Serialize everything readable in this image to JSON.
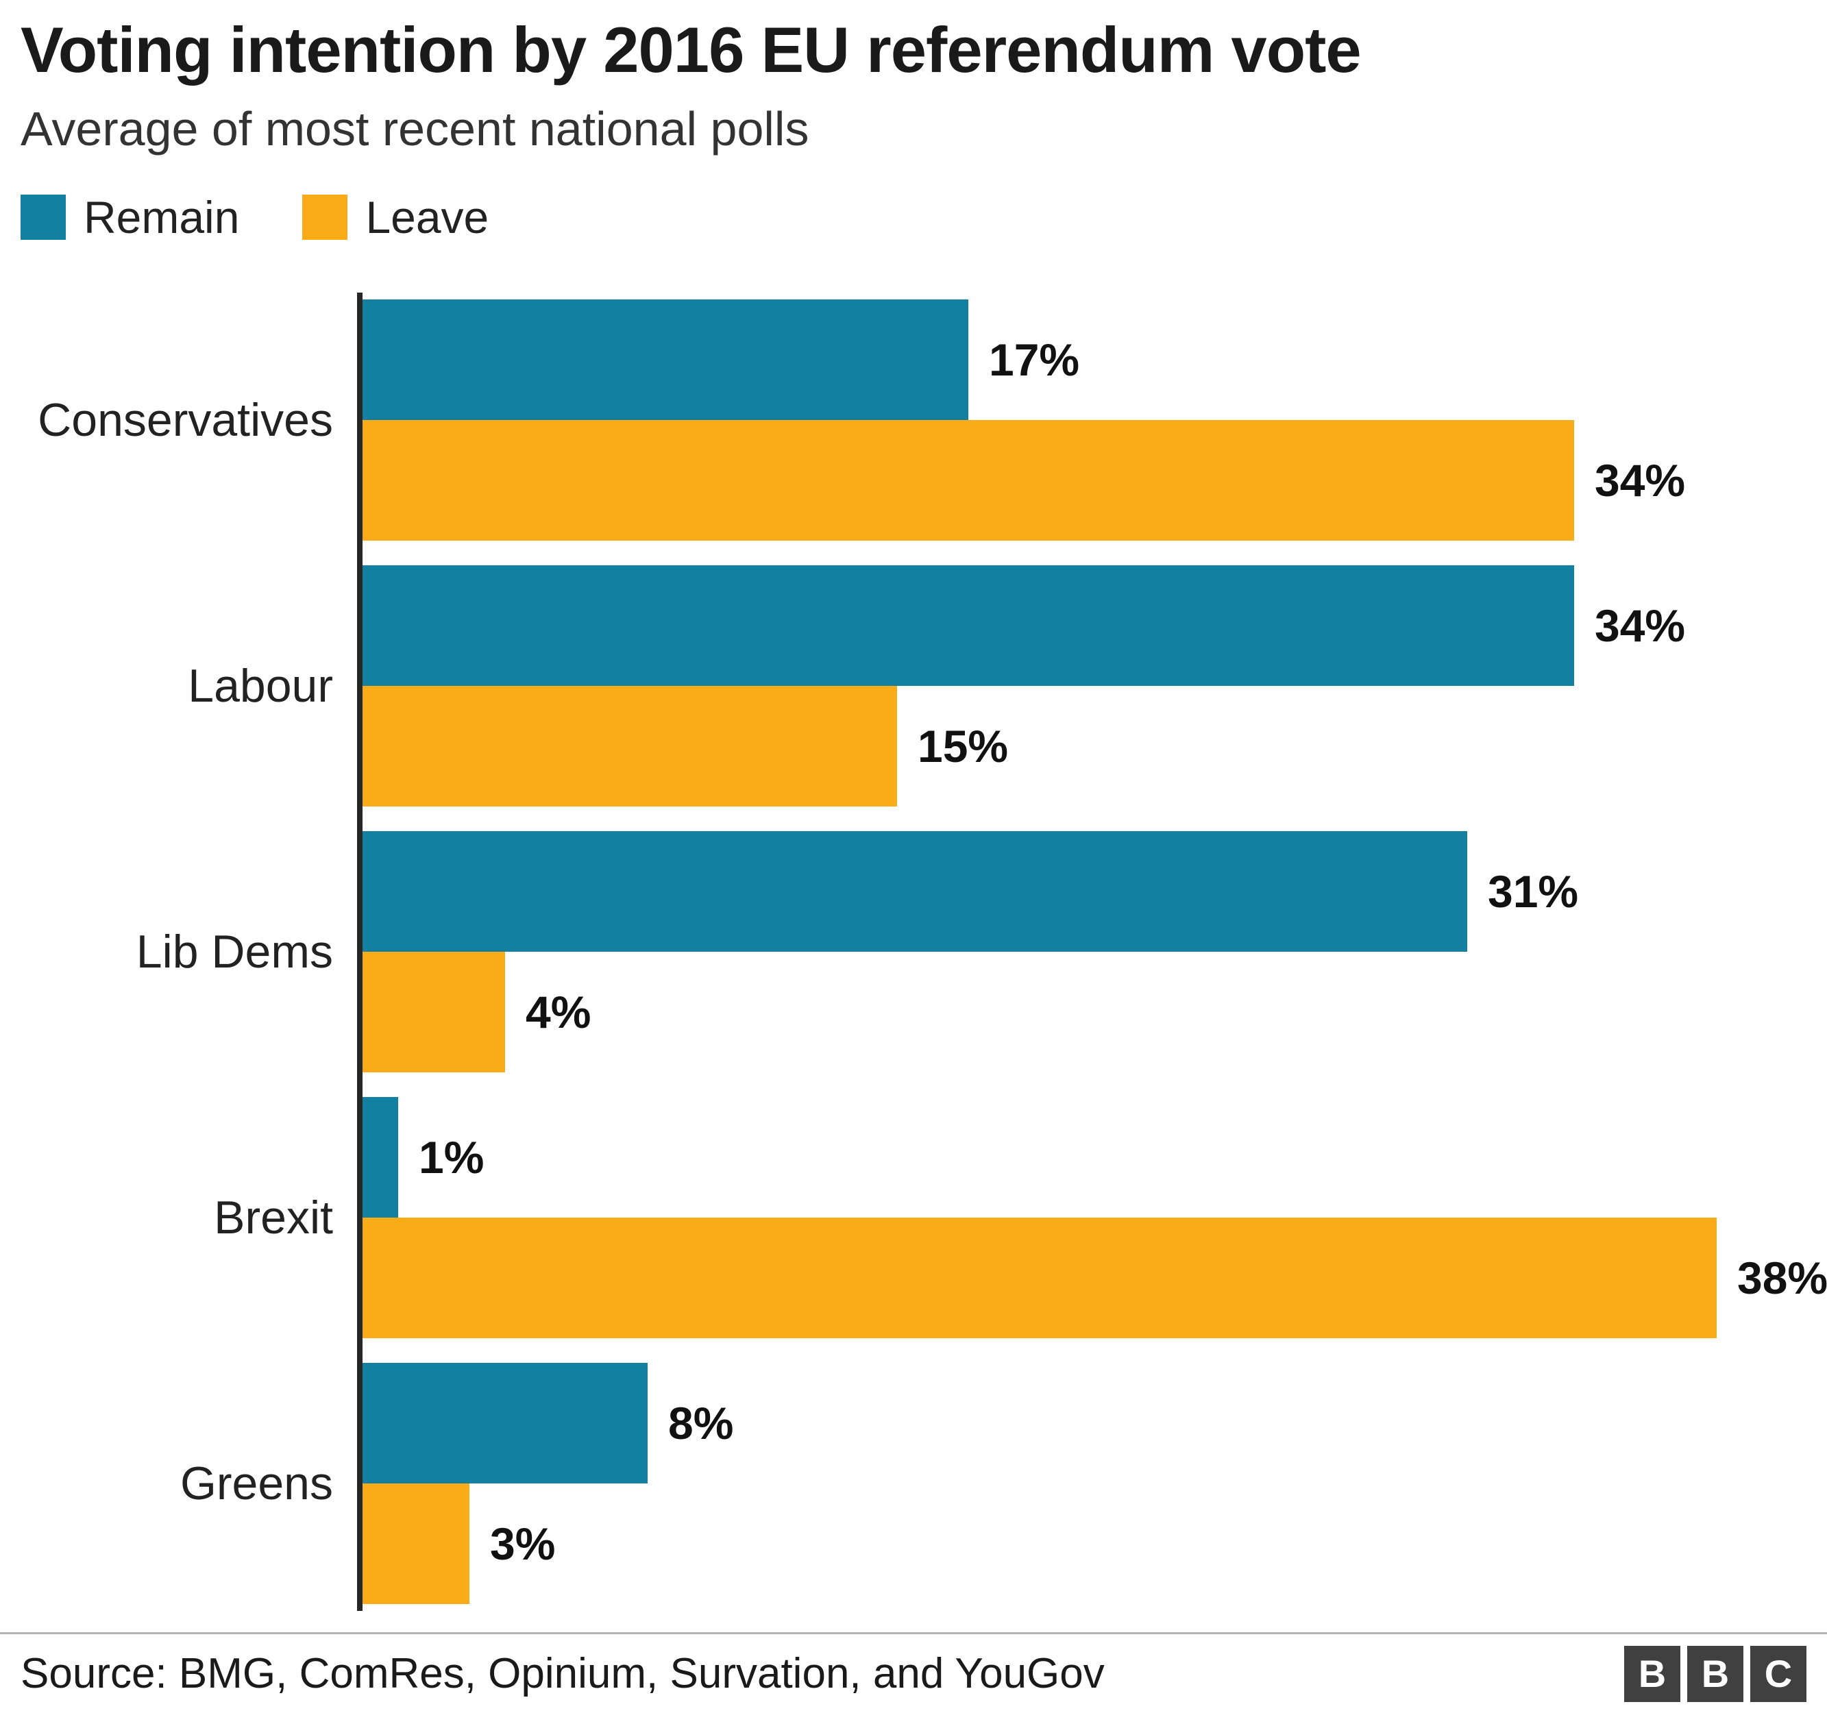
{
  "header": {
    "title": "Voting intention by 2016 EU referendum vote",
    "subtitle": "Average of most recent national polls"
  },
  "legend": [
    {
      "label": "Remain",
      "color": "#1380A1"
    },
    {
      "label": "Leave",
      "color": "#FAAB18"
    }
  ],
  "chart_data": {
    "type": "bar",
    "orientation": "horizontal",
    "title": "Voting intention by 2016 EU referendum vote",
    "subtitle": "Average of most recent national polls",
    "categories": [
      "Conservatives",
      "Labour",
      "Lib Dems",
      "Brexit",
      "Greens"
    ],
    "series": [
      {
        "name": "Remain",
        "color": "#1380A1",
        "values": [
          17,
          34,
          31,
          1,
          8
        ]
      },
      {
        "name": "Leave",
        "color": "#FAAB18",
        "values": [
          34,
          15,
          4,
          38,
          3
        ]
      }
    ],
    "value_suffix": "%",
    "xlim": [
      0,
      40
    ],
    "grid": false,
    "legend_position": "top-left"
  },
  "footer": {
    "source": "Source: BMG, ComRes, Opinium, Survation, and YouGov",
    "logo_letters": [
      "B",
      "B",
      "C"
    ]
  }
}
